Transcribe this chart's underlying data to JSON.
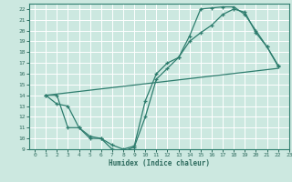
{
  "xlabel": "Humidex (Indice chaleur)",
  "xlim": [
    -0.5,
    23
  ],
  "ylim": [
    9,
    22.5
  ],
  "xticks": [
    0,
    1,
    2,
    3,
    4,
    5,
    6,
    7,
    8,
    9,
    10,
    11,
    12,
    13,
    14,
    15,
    16,
    17,
    18,
    19,
    20,
    21,
    22,
    23
  ],
  "yticks": [
    9,
    10,
    11,
    12,
    13,
    14,
    15,
    16,
    17,
    18,
    19,
    20,
    21,
    22
  ],
  "bg_color": "#cce8e0",
  "grid_color": "#b0d8ce",
  "line_color": "#2e7d6e",
  "curve1_x": [
    1,
    2,
    3,
    4,
    5,
    6,
    7,
    8,
    9,
    10,
    11,
    12,
    13,
    14,
    15,
    16,
    17,
    18,
    19,
    20,
    21,
    22
  ],
  "curve1_y": [
    14,
    14,
    11,
    11,
    10,
    10,
    9,
    8.8,
    9.2,
    12,
    15.5,
    16.5,
    17.5,
    19.5,
    22.0,
    22.1,
    22.2,
    22.2,
    21.5,
    20.0,
    18.5,
    16.8
  ],
  "curve2_x": [
    1,
    2,
    3,
    4,
    5,
    6,
    7,
    8,
    9,
    10,
    11,
    12,
    13,
    14,
    15,
    16,
    17,
    18,
    19,
    20,
    21,
    22
  ],
  "curve2_y": [
    14,
    13.2,
    13,
    11,
    10.2,
    10,
    9.4,
    9,
    9.3,
    13.5,
    16.0,
    17.0,
    17.5,
    19.0,
    19.8,
    20.5,
    21.5,
    22.0,
    21.7,
    19.8,
    18.5,
    16.7
  ],
  "curve3_x": [
    1,
    22
  ],
  "curve3_y": [
    14,
    16.5
  ],
  "font_color": "#2e6b5e"
}
